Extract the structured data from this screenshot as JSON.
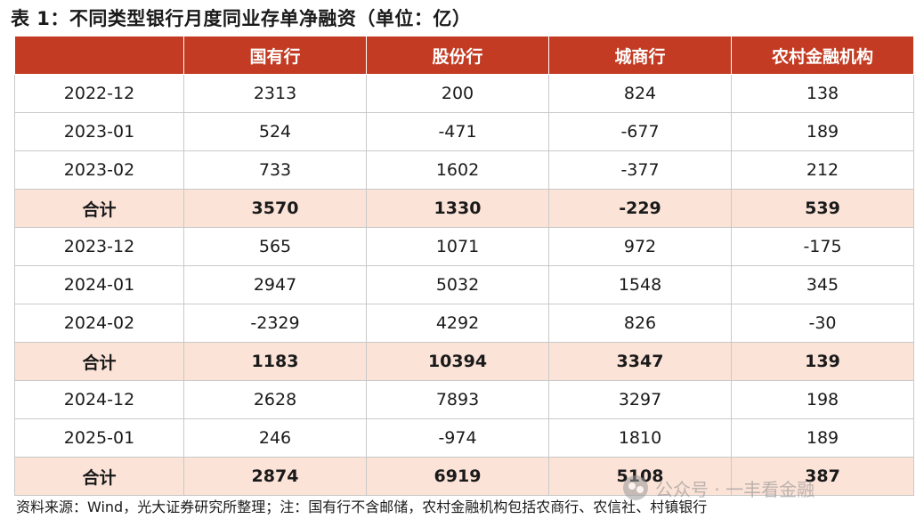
{
  "title": "表 1：不同类型银行月度同业存单净融资（单位：亿）",
  "table": {
    "headers": [
      "",
      "国有行",
      "股份行",
      "城商行",
      "农村金融机构"
    ],
    "rows": [
      {
        "label": "2022-12",
        "values": [
          "2313",
          "200",
          "824",
          "138"
        ],
        "is_total": false
      },
      {
        "label": "2023-01",
        "values": [
          "524",
          "-471",
          "-677",
          "189"
        ],
        "is_total": false
      },
      {
        "label": "2023-02",
        "values": [
          "733",
          "1602",
          "-377",
          "212"
        ],
        "is_total": false
      },
      {
        "label": "合计",
        "values": [
          "3570",
          "1330",
          "-229",
          "539"
        ],
        "is_total": true
      },
      {
        "label": "2023-12",
        "values": [
          "565",
          "1071",
          "972",
          "-175"
        ],
        "is_total": false
      },
      {
        "label": "2024-01",
        "values": [
          "2947",
          "5032",
          "1548",
          "345"
        ],
        "is_total": false
      },
      {
        "label": "2024-02",
        "values": [
          "-2329",
          "4292",
          "826",
          "-30"
        ],
        "is_total": false
      },
      {
        "label": "合计",
        "values": [
          "1183",
          "10394",
          "3347",
          "139"
        ],
        "is_total": true
      },
      {
        "label": "2024-12",
        "values": [
          "2628",
          "7893",
          "3297",
          "198"
        ],
        "is_total": false
      },
      {
        "label": "2025-01",
        "values": [
          "246",
          "-974",
          "1810",
          "189"
        ],
        "is_total": false
      },
      {
        "label": "合计",
        "values": [
          "2874",
          "6919",
          "5108",
          "387"
        ],
        "is_total": true
      }
    ]
  },
  "source": "资料来源：Wind，光大证券研究所整理；注：国有行不含邮储，农村金融机构包括农商行、农信社、村镇银行",
  "watermark": {
    "icon": "wechat-icon",
    "text": "公众号 · 一丰看金融"
  },
  "colors": {
    "header_bg": "#c23b22",
    "total_row_bg": "#fbe3d8"
  }
}
